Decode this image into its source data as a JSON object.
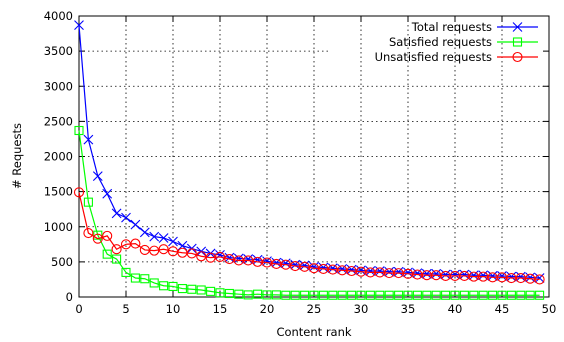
{
  "chart_data": {
    "type": "line",
    "title": "",
    "xlabel": "Content rank",
    "ylabel": "# Requests",
    "xlim": [
      0,
      50
    ],
    "ylim": [
      0,
      4000
    ],
    "xticks": [
      0,
      5,
      10,
      15,
      20,
      25,
      30,
      35,
      40,
      45,
      50
    ],
    "yticks": [
      0,
      500,
      1000,
      1500,
      2000,
      2500,
      3000,
      3500,
      4000
    ],
    "grid": true,
    "legend_position": "top-right",
    "x": [
      0,
      1,
      2,
      3,
      4,
      5,
      6,
      7,
      8,
      9,
      10,
      11,
      12,
      13,
      14,
      15,
      16,
      17,
      18,
      19,
      20,
      21,
      22,
      23,
      24,
      25,
      26,
      27,
      28,
      29,
      30,
      31,
      32,
      33,
      34,
      35,
      36,
      37,
      38,
      39,
      40,
      41,
      42,
      43,
      44,
      45,
      46,
      47,
      48,
      49
    ],
    "series": [
      {
        "name": "Total requests",
        "color": "#0000ff",
        "marker": "x",
        "values": [
          3870,
          2240,
          1720,
          1470,
          1190,
          1130,
          1030,
          920,
          860,
          840,
          790,
          730,
          690,
          650,
          620,
          600,
          560,
          550,
          540,
          530,
          510,
          490,
          480,
          460,
          450,
          430,
          420,
          410,
          400,
          390,
          380,
          370,
          370,
          360,
          360,
          350,
          340,
          330,
          330,
          320,
          320,
          320,
          310,
          310,
          300,
          300,
          290,
          290,
          280,
          270
        ]
      },
      {
        "name": "Satisfied requests",
        "color": "#00ff00",
        "marker": "square",
        "values": [
          2370,
          1350,
          880,
          610,
          540,
          350,
          270,
          260,
          200,
          160,
          150,
          120,
          110,
          100,
          80,
          60,
          50,
          40,
          30,
          40,
          30,
          30,
          25,
          25,
          25,
          25,
          25,
          25,
          25,
          25,
          25,
          25,
          25,
          25,
          25,
          25,
          25,
          25,
          25,
          25,
          25,
          25,
          25,
          25,
          25,
          25,
          25,
          25,
          25,
          25
        ]
      },
      {
        "name": "Unsatisfied requests",
        "color": "#ff0000",
        "marker": "circle",
        "values": [
          1490,
          910,
          830,
          870,
          680,
          750,
          760,
          670,
          660,
          680,
          650,
          630,
          620,
          580,
          560,
          570,
          540,
          520,
          520,
          500,
          490,
          470,
          460,
          440,
          430,
          410,
          400,
          390,
          380,
          370,
          360,
          350,
          350,
          340,
          340,
          330,
          320,
          310,
          310,
          300,
          300,
          300,
          290,
          290,
          280,
          280,
          270,
          270,
          260,
          250
        ]
      }
    ]
  }
}
